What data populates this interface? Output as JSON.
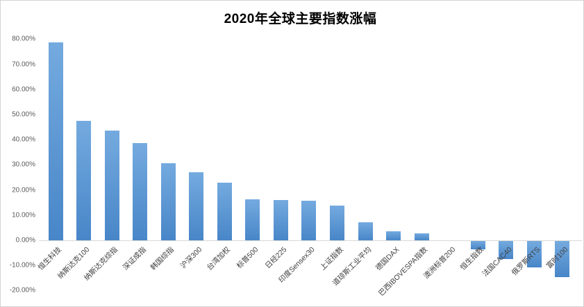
{
  "window": {
    "background_color": "#ffffff",
    "border_color": "#d3d3d3"
  },
  "chart_data": {
    "type": "bar",
    "title": "2020年全球主要指数涨幅",
    "categories": [
      "恒生科技",
      "纳斯达克100",
      "纳斯达克综指",
      "深证成指",
      "韩国综指",
      "沪深300",
      "台湾加权",
      "标普500",
      "日经225",
      "印度Sensex30",
      "上证指数",
      "道琼斯工业平均",
      "德国DAX",
      "巴西IBOVESPA指数",
      "澳洲标普200",
      "恒生指数",
      "法国CAC40",
      "俄罗斯RTS",
      "富时100"
    ],
    "values": [
      78.7,
      47.6,
      43.6,
      38.7,
      30.8,
      27.2,
      22.8,
      16.3,
      16.0,
      15.7,
      13.9,
      7.2,
      3.5,
      2.9,
      0.0,
      -3.4,
      -7.1,
      -10.4,
      -14.3
    ],
    "unit": "%",
    "xlabel": "",
    "ylabel": "",
    "ylim": [
      -20,
      80
    ],
    "y_ticks": [
      "80.00%",
      "70.00%",
      "60.00%",
      "50.00%",
      "40.00%",
      "30.00%",
      "20.00%",
      "10.00%",
      "0.00%",
      "-10.00%",
      "-20.00%"
    ],
    "grid": false,
    "legend": false,
    "colors": {
      "bar_gradient_top": "#74AADF",
      "bar_gradient_bottom": "#4886C8",
      "axis_line": "#d9d9d9",
      "tick_label": "#595959",
      "category_label": "#404040",
      "title": "#000000"
    }
  }
}
